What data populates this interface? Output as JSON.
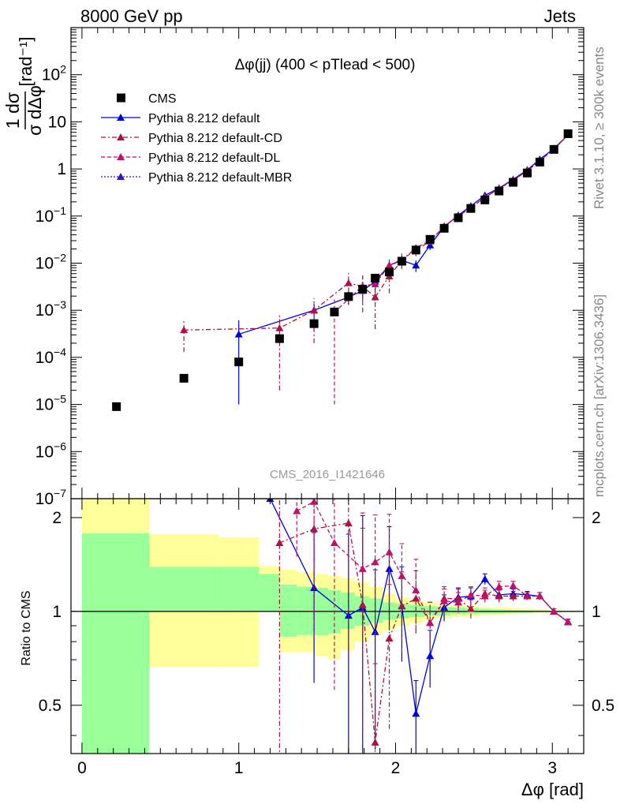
{
  "header": {
    "left": "8000 GeV pp",
    "right": "Jets"
  },
  "side_labels": {
    "rivet": "Rivet 3.1.10, ≥ 300k events",
    "mcplots": "mcplots.cern.ch [arXiv:1306.3436]"
  },
  "watermark": "CMS_2016_I1421646",
  "chart_data": [
    {
      "type": "scatter",
      "panel": "main",
      "title": "Δφ(jj) (400 < pTlead <  500)",
      "ylabel_fraction": {
        "numerator": "1 dσ",
        "denominator": "σ dΔφ",
        "unit": "[rad⁻¹]"
      },
      "xlabel": "Δφ [rad]",
      "xlim": [
        -0.07,
        3.2
      ],
      "ylim": [
        1e-07,
        1000
      ],
      "yscale": "log",
      "ytick_labels": [
        {
          "v": 1e-07,
          "m": "10",
          "e": "−7"
        },
        {
          "v": 1e-06,
          "m": "10",
          "e": "−6"
        },
        {
          "v": 1e-05,
          "m": "10",
          "e": "−5"
        },
        {
          "v": 0.0001,
          "m": "10",
          "e": "−4"
        },
        {
          "v": 0.001,
          "m": "10",
          "e": "−3"
        },
        {
          "v": 0.01,
          "m": "10",
          "e": "−2"
        },
        {
          "v": 0.1,
          "m": "10",
          "e": "−1"
        },
        {
          "v": 1,
          "m": "1",
          "e": ""
        },
        {
          "v": 10,
          "m": "10",
          "e": ""
        },
        {
          "v": 100,
          "m": "10",
          "e": "2"
        }
      ],
      "legend": [
        {
          "label": "CMS",
          "marker": "square",
          "color": "#000000",
          "line": "none"
        },
        {
          "label": "Pythia 8.212 default",
          "marker": "triangle",
          "color": "#0000dd",
          "line": "solid"
        },
        {
          "label": "Pythia 8.212 default-CD",
          "marker": "triangle",
          "color": "#b01040",
          "line": "dashdot"
        },
        {
          "label": "Pythia 8.212 default-DL",
          "marker": "triangle",
          "color": "#c0106a",
          "line": "dashed"
        },
        {
          "label": "Pythia 8.212 default-MBR",
          "marker": "triangle",
          "color": "#3010cc",
          "line": "dotted"
        }
      ],
      "series": [
        {
          "name": "CMS",
          "x": [
            0.22,
            0.65,
            1.0,
            1.26,
            1.48,
            1.61,
            1.7,
            1.79,
            1.87,
            1.96,
            2.04,
            2.13,
            2.22,
            2.31,
            2.4,
            2.48,
            2.57,
            2.66,
            2.75,
            2.84,
            2.92,
            3.01,
            3.1
          ],
          "y": [
            9e-06,
            3.6e-05,
            8e-05,
            0.00025,
            0.00052,
            0.00092,
            0.00195,
            0.0028,
            0.0048,
            0.0065,
            0.011,
            0.019,
            0.032,
            0.055,
            0.092,
            0.145,
            0.22,
            0.34,
            0.52,
            0.82,
            1.4,
            2.6,
            5.6
          ]
        },
        {
          "name": "Pythia 8.212 default",
          "x": [
            1.0,
            1.48,
            1.7,
            1.79,
            1.87,
            1.96,
            2.04,
            2.13,
            2.22,
            2.31,
            2.4,
            2.48,
            2.57,
            2.66,
            2.75,
            2.84,
            2.92,
            3.01,
            3.1
          ],
          "y": [
            0.00031,
            0.001,
            0.0019,
            0.0026,
            0.0041,
            0.009,
            0.0115,
            0.009,
            0.024,
            0.059,
            0.104,
            0.163,
            0.275,
            0.39,
            0.6,
            0.95,
            1.6,
            2.7,
            5.3
          ],
          "err": [
            0.0003,
            0.0004,
            0.0006,
            0.0008,
            0.0015,
            0.0025,
            0.0025,
            0.0025,
            0.005,
            0.006,
            0.01,
            0.013,
            0.02,
            0.025,
            0.035,
            0.05,
            0.07,
            0.1,
            0.15
          ]
        },
        {
          "name": "Pythia 8.212 default-CD",
          "x": [
            0.65,
            1.26,
            1.48,
            1.7,
            1.79,
            1.87,
            1.96,
            2.04,
            2.13,
            2.22,
            2.31,
            2.4,
            2.48,
            2.57,
            2.66,
            2.75,
            2.84,
            2.92,
            3.01,
            3.1
          ],
          "y": [
            0.00038,
            0.00042,
            0.001,
            0.0038,
            0.0032,
            0.0019,
            0.0053,
            0.0115,
            0.021,
            0.03,
            0.06,
            0.1,
            0.15,
            0.25,
            0.38,
            0.58,
            0.9,
            1.5,
            2.6,
            5.3
          ],
          "err": [
            0.00025,
            0.0004,
            0.0008,
            0.0024,
            0.0023,
            0.0015,
            0.003,
            0.004,
            0.005,
            0.005,
            0.006,
            0.01,
            0.013,
            0.02,
            0.025,
            0.035,
            0.05,
            0.07,
            0.1,
            0.15
          ]
        },
        {
          "name": "Pythia 8.212 default-DL",
          "x": [
            1.61,
            1.79,
            1.87,
            1.96,
            2.04,
            2.13,
            2.22,
            2.31,
            2.4,
            2.48,
            2.57,
            2.66,
            2.75,
            2.84,
            2.92,
            3.01,
            3.1
          ],
          "y": [
            0.0009,
            0.0033,
            0.0036,
            0.009,
            0.012,
            0.019,
            0.029,
            0.061,
            0.1,
            0.15,
            0.25,
            0.38,
            0.58,
            0.9,
            1.5,
            2.6,
            5.3
          ],
          "err": [
            0.00089,
            0.002,
            0.002,
            0.003,
            0.004,
            0.005,
            0.005,
            0.006,
            0.01,
            0.013,
            0.02,
            0.025,
            0.035,
            0.05,
            0.07,
            0.1,
            0.15
          ]
        }
      ]
    },
    {
      "type": "scatter",
      "panel": "ratio",
      "ylabel": "Ratio to CMS",
      "xlabel": "Δφ [rad]",
      "xlim": [
        -0.07,
        3.2
      ],
      "ylim": [
        0.35,
        2.3
      ],
      "yscale": "log",
      "yticks": [
        0.5,
        1,
        2
      ],
      "ytick_labels": [
        "0.5",
        "1",
        "2"
      ],
      "xticks": [
        0,
        1,
        2,
        3
      ],
      "xtick_labels": [
        "0",
        "1",
        "2",
        "3"
      ],
      "reference_line": 1,
      "bands": [
        {
          "x0": 0.0,
          "x1": 0.43,
          "y1": [
            0.2,
            10
          ],
          "y2": [
            0.2,
            1.78
          ]
        },
        {
          "x0": 0.43,
          "x1": 0.87,
          "y1": [
            0.665,
            1.77
          ],
          "y2": [
            1.0,
            1.39
          ]
        },
        {
          "x0": 0.87,
          "x1": 1.13,
          "y1": [
            0.665,
            1.73
          ],
          "y2": [
            1.0,
            1.39
          ]
        },
        {
          "x0": 1.13,
          "x1": 1.26,
          "y1": [
            1.0,
            1.4
          ],
          "y2": [
            1.0,
            1.32
          ]
        },
        {
          "x0": 1.26,
          "x1": 1.37,
          "y1": [
            0.74,
            1.36
          ],
          "y2": [
            0.83,
            1.22
          ]
        },
        {
          "x0": 1.37,
          "x1": 1.48,
          "y1": [
            0.74,
            1.34
          ],
          "y2": [
            0.84,
            1.2
          ]
        },
        {
          "x0": 1.48,
          "x1": 1.57,
          "y1": [
            0.72,
            1.32
          ],
          "y2": [
            0.84,
            1.19
          ]
        },
        {
          "x0": 1.57,
          "x1": 1.65,
          "y1": [
            0.7,
            1.3
          ],
          "y2": [
            0.85,
            1.17
          ]
        },
        {
          "x0": 1.65,
          "x1": 1.74,
          "y1": [
            0.75,
            1.28
          ],
          "y2": [
            0.88,
            1.15
          ]
        },
        {
          "x0": 1.74,
          "x1": 1.83,
          "y1": [
            0.8,
            1.24
          ],
          "y2": [
            0.9,
            1.12
          ]
        },
        {
          "x0": 1.83,
          "x1": 1.92,
          "y1": [
            0.84,
            1.2
          ],
          "y2": [
            0.92,
            1.1
          ]
        },
        {
          "x0": 1.92,
          "x1": 2.0,
          "y1": [
            0.87,
            1.14
          ],
          "y2": [
            0.94,
            1.07
          ]
        },
        {
          "x0": 2.0,
          "x1": 2.09,
          "y1": [
            0.9,
            1.11
          ],
          "y2": [
            0.95,
            1.06
          ]
        },
        {
          "x0": 2.09,
          "x1": 2.18,
          "y1": [
            0.92,
            1.08
          ],
          "y2": [
            0.96,
            1.05
          ]
        },
        {
          "x0": 2.18,
          "x1": 2.26,
          "y1": [
            0.94,
            1.07
          ],
          "y2": [
            0.97,
            1.04
          ]
        },
        {
          "x0": 2.26,
          "x1": 2.35,
          "y1": [
            0.95,
            1.06
          ],
          "y2": [
            0.97,
            1.035
          ]
        },
        {
          "x0": 2.35,
          "x1": 2.44,
          "y1": [
            0.96,
            1.05
          ],
          "y2": [
            0.98,
            1.03
          ]
        },
        {
          "x0": 2.44,
          "x1": 2.53,
          "y1": [
            0.965,
            1.04
          ],
          "y2": [
            0.98,
            1.025
          ]
        },
        {
          "x0": 2.53,
          "x1": 2.61,
          "y1": [
            0.97,
            1.035
          ],
          "y2": [
            0.985,
            1.02
          ]
        },
        {
          "x0": 2.61,
          "x1": 2.7,
          "y1": [
            0.975,
            1.03
          ],
          "y2": [
            0.985,
            1.015
          ]
        },
        {
          "x0": 2.7,
          "x1": 2.79,
          "y1": [
            0.98,
            1.025
          ],
          "y2": [
            0.99,
            1.012
          ]
        },
        {
          "x0": 2.79,
          "x1": 2.88,
          "y1": [
            0.985,
            1.02
          ],
          "y2": [
            0.99,
            1.01
          ]
        },
        {
          "x0": 2.88,
          "x1": 2.97,
          "y1": [
            0.99,
            1.015
          ],
          "y2": [
            0.995,
            1.008
          ]
        },
        {
          "x0": 2.97,
          "x1": 3.06,
          "y1": [
            0.99,
            1.012
          ],
          "y2": [
            0.995,
            1.006
          ]
        },
        {
          "x0": 3.06,
          "x1": 3.14,
          "y1": [
            0.993,
            1.01
          ],
          "y2": [
            0.997,
            1.005
          ]
        }
      ],
      "band_colors": {
        "outer": "#ffff99",
        "inner": "#99ff99"
      },
      "series": [
        {
          "name": "Pythia 8.212 default",
          "x": [
            1.2,
            1.48,
            1.7,
            1.79,
            1.87,
            1.96,
            2.04,
            2.13,
            2.22,
            2.31,
            2.4,
            2.48,
            2.57,
            2.66,
            2.75,
            2.84,
            2.92,
            3.01,
            3.1
          ],
          "y": [
            2.3,
            1.19,
            0.97,
            1.03,
            0.86,
            1.37,
            1.04,
            0.47,
            0.72,
            1.03,
            1.11,
            1.12,
            1.27,
            1.13,
            1.14,
            1.13,
            1.12,
            1.0,
            0.925
          ],
          "err": [
            0,
            0.6,
            0.8,
            1.0,
            0.5,
            0.5,
            0.35,
            0.13,
            0.15,
            0.1,
            0.08,
            0.07,
            0.05,
            0.05,
            0.04,
            0.03,
            0.03,
            0.02,
            0.02
          ]
        },
        {
          "name": "Pythia 8.212 default-CD",
          "x": [
            1.26,
            1.48,
            1.7,
            1.79,
            1.87,
            1.96,
            2.04,
            2.13,
            2.22,
            2.31,
            2.4,
            2.48,
            2.57,
            2.66,
            2.75,
            2.84,
            2.92,
            3.01,
            3.1
          ],
          "y": [
            1.66,
            1.84,
            1.92,
            1.05,
            0.38,
            0.82,
            1.04,
            1.1,
            0.92,
            1.1,
            1.1,
            1.02,
            1.14,
            1.12,
            1.12,
            1.12,
            1.12,
            1.0,
            0.925
          ],
          "err": [
            1.6,
            1.0,
            1.2,
            0.8,
            0.3,
            0.4,
            0.3,
            0.25,
            0.15,
            0.1,
            0.08,
            0.07,
            0.05,
            0.05,
            0.04,
            0.03,
            0.03,
            0.02,
            0.02
          ]
        },
        {
          "name": "Pythia 8.212 default-DL",
          "x": [
            1.37,
            1.48,
            1.61,
            1.79,
            1.87,
            1.96,
            2.04,
            2.13,
            2.22,
            2.31,
            2.4,
            2.48,
            2.57,
            2.66,
            2.75,
            2.84,
            2.92,
            3.01,
            3.1
          ],
          "y": [
            2.1,
            2.25,
            1.66,
            1.37,
            1.44,
            1.55,
            1.3,
            1.17,
            0.92,
            1.08,
            1.07,
            1.13,
            1.12,
            1.2,
            1.21,
            1.12,
            1.12,
            1.0,
            0.925
          ],
          "err": [
            0.6,
            0.9,
            1.1,
            0.7,
            0.6,
            0.5,
            0.35,
            0.3,
            0.15,
            0.1,
            0.08,
            0.07,
            0.05,
            0.05,
            0.04,
            0.03,
            0.03,
            0.02,
            0.02
          ]
        }
      ]
    }
  ]
}
